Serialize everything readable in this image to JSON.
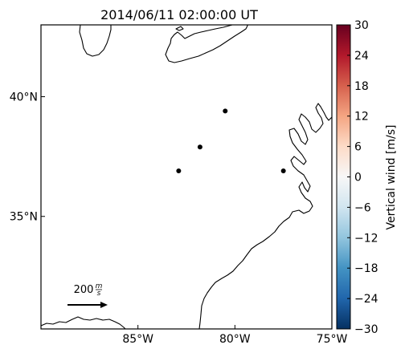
{
  "title": "2014/06/11 02:00:00 UT",
  "map": {
    "lat_ticks": [
      {
        "label": "40°N",
        "value": 40
      },
      {
        "label": "35°N",
        "value": 35
      }
    ],
    "lon_ticks": [
      {
        "label": "85°W",
        "value": -85
      },
      {
        "label": "80°W",
        "value": -80
      },
      {
        "label": "75°W",
        "value": -75
      }
    ],
    "extent": {
      "lon_min": -90,
      "lon_max": -75,
      "lat_min": 30.3,
      "lat_max": 43
    }
  },
  "chart_data": {
    "type": "scatter",
    "stations": [
      {
        "lon": -80.5,
        "lat": 39.4
      },
      {
        "lon": -81.8,
        "lat": 37.9
      },
      {
        "lon": -82.9,
        "lat": 36.9
      },
      {
        "lon": -77.5,
        "lat": 36.9
      }
    ]
  },
  "reference_vector": {
    "label_value": "200",
    "label_unit_num": "m",
    "label_unit_den": "s",
    "value": 200
  },
  "colorbar": {
    "label": "Vertical wind [m/s]",
    "min": -30,
    "max": 30,
    "ticks": [
      "30",
      "24",
      "18",
      "12",
      "6",
      "0",
      "−6",
      "−12",
      "−18",
      "−24",
      "−30"
    ],
    "colors": [
      "#67001f",
      "#b2182b",
      "#d6604d",
      "#f4a582",
      "#fddbc7",
      "#f7f7f7",
      "#d1e5f0",
      "#92c5de",
      "#4393c3",
      "#2166ac",
      "#053061"
    ]
  }
}
